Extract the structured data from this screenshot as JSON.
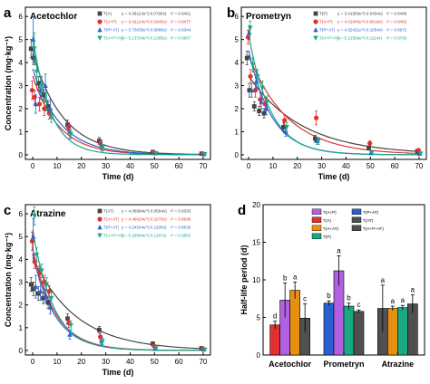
{
  "colors": {
    "TA": "#444444",
    "TAP": "#e03030",
    "TDPAT": "#2a5fd0",
    "TAPAT": "#1aa880",
    "bar_TAP": "#b060e0",
    "bar_TA": "#e03030",
    "bar_TDP": "#e69010",
    "bar_TAPAT": "#1aa880",
    "bar_TDPAT": "#2a5fd0",
    "bar_TAPAT2": "#505050"
  },
  "chart_data": [
    {
      "type": "scatter",
      "panel_letter": "a",
      "title": "Acetochlor",
      "xlabel": "Time (d)",
      "ylabel": "Concentration (mg·kg⁻¹)",
      "xlim": [
        -3,
        73
      ],
      "ylim": [
        -0.2,
        6.4
      ],
      "xticks": [
        0,
        10,
        20,
        30,
        40,
        50,
        60,
        70
      ],
      "yticks": [
        0,
        1,
        2,
        3,
        4,
        5,
        6
      ],
      "x": [
        0,
        1,
        3,
        5,
        7,
        15,
        28,
        50,
        70
      ],
      "series": [
        {
          "name": "T(A)",
          "key": "TA",
          "marker": "square",
          "values": [
            4.6,
            4.2,
            3.1,
            2.6,
            2.1,
            1.3,
            0.6,
            0.12,
            0.05
          ],
          "errors": [
            0.4,
            0.3,
            0.3,
            0.25,
            0.2,
            0.2,
            0.15,
            0.05,
            0.03
          ],
          "fit": {
            "a": 4.39113,
            "k": 0.0796
          },
          "equation": "y = 4.39113e^(-0.0796x)",
          "r2": "r² = 0.9401"
        },
        {
          "name": "T(A+P)",
          "key": "TAP",
          "marker": "circle",
          "values": [
            2.8,
            2.5,
            2.2,
            2.0,
            1.8,
            1.2,
            0.5,
            0.1,
            0.05
          ],
          "errors": [
            0.4,
            0.3,
            0.3,
            0.3,
            0.25,
            0.2,
            0.15,
            0.05,
            0.03
          ],
          "fit": {
            "a": 3.42124,
            "k": 0.0945
          },
          "equation": "y = 3.42124e^(-0.0945x)",
          "r2": "r² = 0.8477"
        },
        {
          "name": "T(P+AT)",
          "key": "TDPAT",
          "marker": "triangle",
          "values": [
            5.0,
            2.2,
            2.8,
            3.0,
            2.0,
            1.0,
            0.4,
            0.08,
            0.03
          ],
          "errors": [
            1.0,
            0.4,
            0.4,
            0.5,
            0.4,
            0.3,
            0.2,
            0.05,
            0.02
          ],
          "fit": {
            "a": 3.73036,
            "k": 0.0886
          },
          "equation": "y = 3.73036e^(-0.0886x)",
          "r2": "r² = 0.8344"
        },
        {
          "name": "T(A+P+AT)",
          "key": "TAPAT",
          "marker": "triangle-down",
          "values": [
            4.6,
            3.6,
            3.0,
            2.3,
            1.7,
            0.9,
            0.3,
            0.06,
            0.02
          ],
          "errors": [
            0.7,
            0.5,
            0.4,
            0.4,
            0.3,
            0.2,
            0.15,
            0.04,
            0.02
          ],
          "fit": {
            "a": 5.13724,
            "k": 0.1385
          },
          "equation": "y = 5.13724e^(-0.1385x)",
          "r2": "r² = 0.9907"
        }
      ]
    },
    {
      "type": "scatter",
      "panel_letter": "b",
      "title": "Prometryn",
      "xlabel": "Time (d)",
      "ylabel": "",
      "xlim": [
        -3,
        73
      ],
      "ylim": [
        -0.2,
        6.4
      ],
      "xticks": [
        0,
        10,
        20,
        30,
        40,
        50,
        60,
        70
      ],
      "yticks": [
        0,
        1,
        2,
        3,
        4,
        5,
        6
      ],
      "x": [
        0,
        1,
        3,
        5,
        7,
        15,
        28,
        50,
        70
      ],
      "series": [
        {
          "name": "T(P)",
          "key": "TA",
          "marker": "square",
          "values": [
            4.2,
            2.8,
            2.1,
            1.9,
            1.8,
            1.2,
            0.7,
            0.3,
            0.15
          ],
          "errors": [
            0.3,
            0.3,
            0.2,
            0.2,
            0.2,
            0.2,
            0.15,
            0.08,
            0.05
          ],
          "fit": {
            "a": 3.41956,
            "k": 0.0454
          },
          "equation": "y = 3.41956e^(-0.0454x)",
          "r2": "r² = 0.8490"
        },
        {
          "name": "T(A+P)",
          "key": "TAP",
          "marker": "circle",
          "values": [
            5.1,
            3.4,
            2.8,
            2.4,
            2.2,
            1.5,
            1.6,
            0.5,
            0.2
          ],
          "errors": [
            0.3,
            0.3,
            0.3,
            0.3,
            0.25,
            0.2,
            0.3,
            0.1,
            0.05
          ],
          "fit": {
            "a": 4.31846,
            "k": 0.0619
          },
          "equation": "y = 4.31846e^(-0.0619x)",
          "r2": "r² = 0.8463"
        },
        {
          "name": "T(P+AT)",
          "key": "TDPAT",
          "marker": "triangle",
          "values": [
            5.3,
            2.8,
            3.2,
            2.3,
            2.0,
            1.0,
            0.6,
            0.08,
            0.05
          ],
          "errors": [
            0.3,
            0.3,
            0.3,
            0.3,
            0.25,
            0.2,
            0.15,
            0.05,
            0.03
          ],
          "fit": {
            "a": 4.52421,
            "k": 0.1054
          },
          "equation": "y = 4.52421e^(-0.1054x)",
          "r2": "r² = 0.8972"
        },
        {
          "name": "T(A+P+AT)",
          "key": "TAPAT",
          "marker": "triangle-down",
          "values": [
            5.5,
            3.9,
            3.4,
            2.9,
            2.3,
            1.2,
            0.6,
            0.1,
            0.05
          ],
          "errors": [
            0.3,
            0.3,
            0.3,
            0.3,
            0.25,
            0.2,
            0.15,
            0.05,
            0.03
          ],
          "fit": {
            "a": 5.21589,
            "k": 0.1114
          },
          "equation": "y = 5.21589e^(-0.1114x)",
          "r2": "r² = 0.9769"
        }
      ]
    },
    {
      "type": "scatter",
      "panel_letter": "c",
      "title": "Atrazine",
      "xlabel": "Time (d)",
      "ylabel": "Concentration (mg·kg⁻¹)",
      "xlim": [
        -3,
        73
      ],
      "ylim": [
        -0.2,
        6.4
      ],
      "xticks": [
        0,
        10,
        20,
        30,
        40,
        50,
        60,
        70
      ],
      "yticks": [
        0,
        1,
        2,
        3,
        4,
        5,
        6
      ],
      "x": [
        0,
        1,
        3,
        5,
        7,
        15,
        28,
        50,
        70
      ],
      "series": [
        {
          "name": "T(AT)",
          "key": "TA",
          "marker": "square",
          "values": [
            2.9,
            2.7,
            2.5,
            2.3,
            2.1,
            1.4,
            0.9,
            0.3,
            0.1
          ],
          "errors": [
            0.3,
            0.3,
            0.3,
            0.25,
            0.25,
            0.2,
            0.15,
            0.08,
            0.05
          ],
          "fit": {
            "a": 4.08684,
            "k": 0.0564
          },
          "equation": "y = 4.08684e^(-0.0564x)",
          "r2": "r² = 0.8333"
        },
        {
          "name": "T(A+AT)",
          "key": "TAP",
          "marker": "circle",
          "values": [
            4.8,
            3.9,
            3.4,
            3.0,
            2.6,
            1.2,
            0.6,
            0.2,
            0.08
          ],
          "errors": [
            0.4,
            0.3,
            0.3,
            0.3,
            0.25,
            0.2,
            0.15,
            0.05,
            0.03
          ],
          "fit": {
            "a": 4.46024,
            "k": 0.1075
          },
          "equation": "y = 4.46024e^(-0.1075x)",
          "r2": "r² = 0.9596"
        },
        {
          "name": "T(P+AT)",
          "key": "TDPAT",
          "marker": "triangle",
          "values": [
            5.0,
            2.8,
            2.6,
            2.4,
            1.9,
            0.7,
            0.4,
            0.08,
            0.05
          ],
          "errors": [
            0.8,
            0.5,
            0.4,
            0.3,
            0.3,
            0.2,
            0.15,
            0.05,
            0.03
          ],
          "fit": {
            "a": 4.24544,
            "k": 0.1105
          },
          "equation": "y = 4.24544e^(-0.1105x)",
          "r2": "r² = 0.8539"
        },
        {
          "name": "T(A+P+AT)",
          "key": "TAPAT",
          "marker": "triangle-down",
          "values": [
            5.9,
            4.2,
            3.5,
            2.9,
            2.3,
            1.1,
            0.4,
            0.08,
            0.04
          ],
          "errors": [
            0.4,
            0.3,
            0.3,
            0.3,
            0.25,
            0.2,
            0.15,
            0.05,
            0.03
          ],
          "fit": {
            "a": 5.29584,
            "k": 0.1187
          },
          "equation": "y = 5.29584e^(-0.1187x)",
          "r2": "r² = 0.9852"
        }
      ]
    },
    {
      "type": "bar",
      "panel_letter": "d",
      "title": "",
      "xlabel": "",
      "ylabel": "Half-life period (d)",
      "ylim": [
        0,
        20
      ],
      "yticks": [
        0,
        5,
        10,
        15,
        20
      ],
      "categories": [
        "Acetochlor",
        "Prometryn",
        "Atrazine"
      ],
      "legend": [
        {
          "name": "T(A+P)",
          "key": "bar_TAP"
        },
        {
          "name": "T(A)",
          "key": "bar_TA"
        },
        {
          "name": "T(A+AT)",
          "key": "bar_TDP"
        },
        {
          "name": "T(P)",
          "key": "bar_TAPAT"
        },
        {
          "name": "T(P+AT)",
          "key": "bar_TDPAT"
        },
        {
          "name": "T(AT)",
          "key": "bar_TAPAT2"
        },
        {
          "name": "T(A+P+AT)",
          "key": "bar_TAPAT2"
        }
      ],
      "groups": [
        {
          "category": "Acetochlor",
          "bars": [
            {
              "key": "bar_TA",
              "value": 4.0,
              "error": 0.5,
              "label": "d"
            },
            {
              "key": "bar_TAP",
              "value": 7.3,
              "error": 2.3,
              "label": "b"
            },
            {
              "key": "bar_TDP",
              "value": 8.6,
              "error": 1.1,
              "label": "a"
            },
            {
              "key": "bar_TAPAT2",
              "value": 4.9,
              "error": 1.9,
              "label": "c"
            }
          ]
        },
        {
          "category": "Prometryn",
          "bars": [
            {
              "key": "bar_TDPAT",
              "value": 6.9,
              "error": 0.3,
              "label": "b"
            },
            {
              "key": "bar_TAP",
              "value": 11.2,
              "error": 2.0,
              "label": "a"
            },
            {
              "key": "bar_TAPAT",
              "value": 6.5,
              "error": 0.4,
              "label": "b"
            },
            {
              "key": "bar_TAPAT2",
              "value": 5.8,
              "error": 0.2,
              "label": "c"
            }
          ]
        },
        {
          "category": "Atrazine",
          "bars": [
            {
              "key": "bar_TAPAT2",
              "value": 6.2,
              "error": 3.1,
              "label": "a"
            },
            {
              "key": "bar_TDP",
              "value": 6.2,
              "error": 0.3,
              "label": "a"
            },
            {
              "key": "bar_TAPAT",
              "value": 6.3,
              "error": 0.3,
              "label": "a"
            },
            {
              "key": "bar_TAPAT2",
              "value": 6.8,
              "error": 1.2,
              "label": "a"
            }
          ]
        }
      ]
    }
  ]
}
